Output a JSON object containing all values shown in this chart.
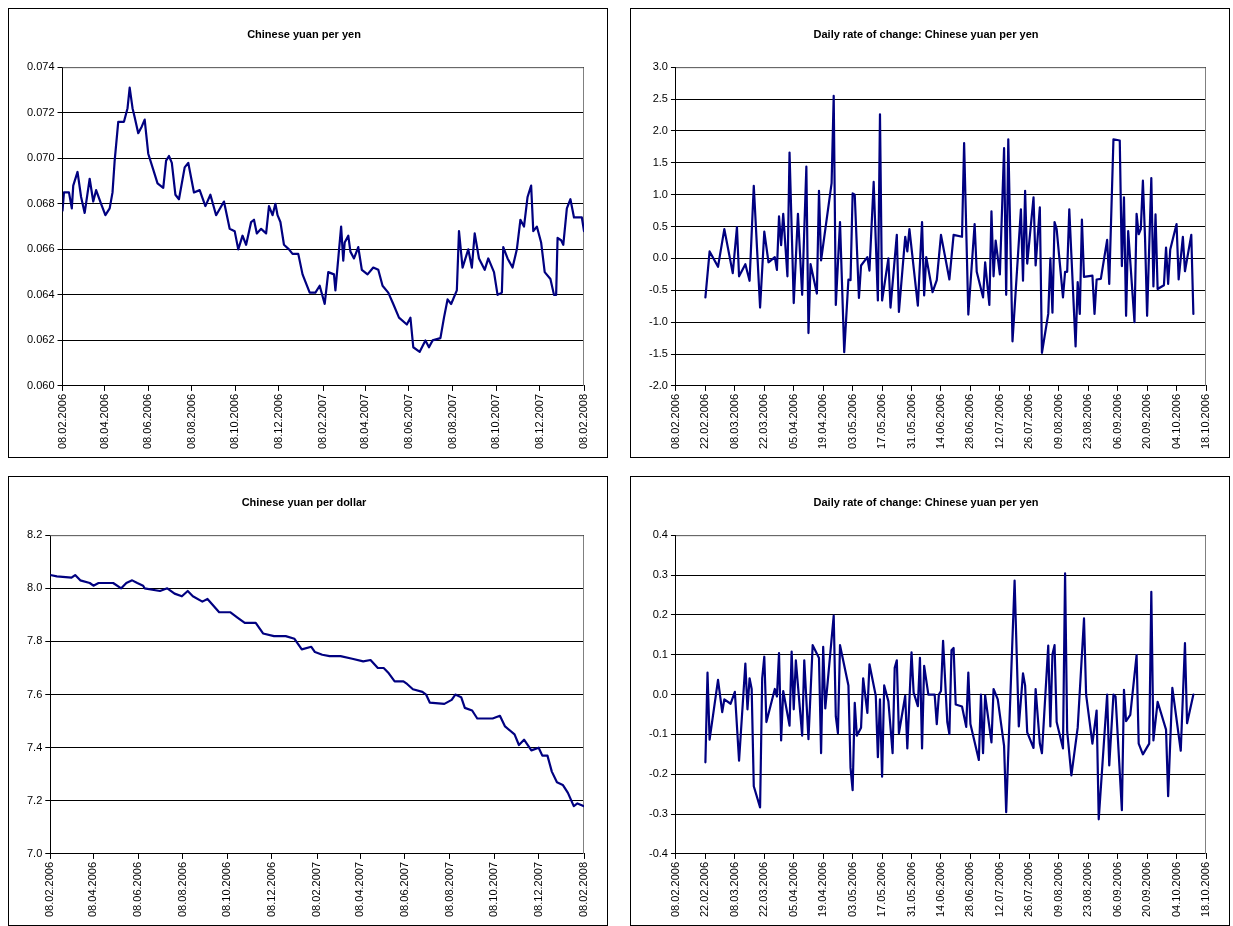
{
  "chart_data": [
    {
      "type": "line",
      "title": "Chinese yuan per yen",
      "color": "#000080",
      "marker": "none",
      "grid": "y",
      "x": [
        "2006-02-08",
        "2006-02-10",
        "2006-02-17",
        "2006-02-21",
        "2006-02-23",
        "2006-03-01",
        "2006-03-06",
        "2006-03-11",
        "2006-03-18",
        "2006-03-23",
        "2006-03-27",
        "2006-04-03",
        "2006-04-09",
        "2006-04-15",
        "2006-04-19",
        "2006-04-22",
        "2006-04-27",
        "2006-05-05",
        "2006-05-10",
        "2006-05-13",
        "2006-05-17",
        "2006-05-20",
        "2006-05-25",
        "2006-05-30",
        "2006-06-03",
        "2006-06-08",
        "2006-06-15",
        "2006-06-21",
        "2006-06-29",
        "2006-07-03",
        "2006-07-07",
        "2006-07-11",
        "2006-07-16",
        "2006-07-21",
        "2006-07-29",
        "2006-08-03",
        "2006-08-11",
        "2006-08-19",
        "2006-08-27",
        "2006-09-03",
        "2006-09-11",
        "2006-09-22",
        "2006-09-30",
        "2006-10-07",
        "2006-10-12",
        "2006-10-18",
        "2006-10-23",
        "2006-10-30",
        "2006-11-03",
        "2006-11-07",
        "2006-11-13",
        "2006-11-20",
        "2006-11-24",
        "2006-11-29",
        "2006-12-03",
        "2006-12-06",
        "2006-12-10",
        "2006-12-15",
        "2006-12-22",
        "2006-12-27",
        "2007-01-04",
        "2007-01-10",
        "2007-01-20",
        "2007-01-28",
        "2007-02-03",
        "2007-02-10",
        "2007-02-15",
        "2007-02-23",
        "2007-02-25",
        "2007-03-05",
        "2007-03-08",
        "2007-03-10",
        "2007-03-15",
        "2007-03-18",
        "2007-03-23",
        "2007-03-29",
        "2007-04-03",
        "2007-04-11",
        "2007-04-19",
        "2007-04-26",
        "2007-05-02",
        "2007-05-10",
        "2007-05-17",
        "2007-05-25",
        "2007-06-05",
        "2007-06-10",
        "2007-06-14",
        "2007-06-23",
        "2007-07-01",
        "2007-07-06",
        "2007-07-11",
        "2007-07-22",
        "2007-07-27",
        "2007-08-01",
        "2007-08-06",
        "2007-08-14",
        "2007-08-17",
        "2007-08-22",
        "2007-08-30",
        "2007-09-04",
        "2007-09-08",
        "2007-09-14",
        "2007-09-22",
        "2007-09-27",
        "2007-10-05",
        "2007-10-10",
        "2007-10-16",
        "2007-10-18",
        "2007-10-24",
        "2007-10-31",
        "2007-11-06",
        "2007-11-11",
        "2007-11-16",
        "2007-11-21",
        "2007-11-26",
        "2007-11-29",
        "2007-12-04",
        "2007-12-10",
        "2007-12-15",
        "2007-12-23",
        "2007-12-28",
        "2007-12-31",
        "2008-01-02",
        "2008-01-07",
        "2008-01-10",
        "2008-01-15",
        "2008-01-20",
        "2008-01-25",
        "2008-01-31",
        "2008-02-05",
        "2008-02-08"
      ],
      "values": [
        0.0677,
        0.0685,
        0.0685,
        0.0678,
        0.0688,
        0.0694,
        0.0683,
        0.0676,
        0.0691,
        0.0681,
        0.0686,
        0.068,
        0.0675,
        0.0678,
        0.0685,
        0.0699,
        0.0716,
        0.0716,
        0.0722,
        0.0731,
        0.0722,
        0.0718,
        0.0711,
        0.0714,
        0.0717,
        0.0702,
        0.0695,
        0.0689,
        0.0687,
        0.0699,
        0.0701,
        0.0698,
        0.0684,
        0.0682,
        0.0696,
        0.0698,
        0.0685,
        0.0686,
        0.0679,
        0.0684,
        0.0675,
        0.0681,
        0.0669,
        0.0668,
        0.066,
        0.0666,
        0.0662,
        0.0672,
        0.0673,
        0.0667,
        0.0669,
        0.0667,
        0.0679,
        0.0675,
        0.068,
        0.0675,
        0.0672,
        0.0662,
        0.066,
        0.0658,
        0.0658,
        0.0649,
        0.0641,
        0.0641,
        0.0644,
        0.0636,
        0.065,
        0.0649,
        0.0642,
        0.067,
        0.0655,
        0.0663,
        0.0666,
        0.0659,
        0.0656,
        0.0661,
        0.0651,
        0.0649,
        0.0652,
        0.0651,
        0.0644,
        0.0641,
        0.0636,
        0.063,
        0.0627,
        0.063,
        0.0617,
        0.0615,
        0.062,
        0.0617,
        0.062,
        0.0621,
        0.063,
        0.0638,
        0.0636,
        0.0642,
        0.0668,
        0.0652,
        0.066,
        0.0652,
        0.0667,
        0.0656,
        0.0651,
        0.0656,
        0.065,
        0.064,
        0.0641,
        0.0661,
        0.0656,
        0.0652,
        0.066,
        0.0673,
        0.067,
        0.0683,
        0.0688,
        0.0668,
        0.067,
        0.0663,
        0.065,
        0.0647,
        0.064,
        0.064,
        0.0665,
        0.0664,
        0.0662,
        0.0678,
        0.0682,
        0.0674,
        0.0674,
        0.0674,
        0.0668
      ],
      "xlim": [
        "2006-02-08",
        "2008-02-08"
      ],
      "xticks": [
        {
          "value": "2006-02-08",
          "label": "08.02.2006"
        },
        {
          "value": "2006-04-08",
          "label": "08.04.2006"
        },
        {
          "value": "2006-06-08",
          "label": "08.06.2006"
        },
        {
          "value": "2006-08-08",
          "label": "08.08.2006"
        },
        {
          "value": "2006-10-08",
          "label": "08.10.2006"
        },
        {
          "value": "2006-12-08",
          "label": "08.12.2006"
        },
        {
          "value": "2007-02-08",
          "label": "08.02.2007"
        },
        {
          "value": "2007-04-08",
          "label": "08.04.2007"
        },
        {
          "value": "2007-06-08",
          "label": "08.06.2007"
        },
        {
          "value": "2007-08-08",
          "label": "08.08.2007"
        },
        {
          "value": "2007-10-08",
          "label": "08.10.2007"
        },
        {
          "value": "2007-12-08",
          "label": "08.12.2007"
        },
        {
          "value": "2008-02-08",
          "label": "08.02.2008"
        }
      ],
      "ylim": [
        0.06,
        0.074
      ],
      "yticks": [
        {
          "value": 0.06,
          "label": "0.060"
        },
        {
          "value": 0.062,
          "label": "0.062"
        },
        {
          "value": 0.064,
          "label": "0.064"
        },
        {
          "value": 0.066,
          "label": "0.066"
        },
        {
          "value": 0.068,
          "label": "0.068"
        },
        {
          "value": 0.07,
          "label": "0.070"
        },
        {
          "value": 0.072,
          "label": "0.072"
        },
        {
          "value": 0.074,
          "label": "0.074"
        }
      ]
    },
    {
      "type": "line",
      "title": "Daily rate of change: Chinese yuan per yen",
      "color": "#000080",
      "marker": "none",
      "grid": "y",
      "x": [
        "2006-02-22",
        "2006-02-24",
        "2006-02-28",
        "2006-03-03",
        "2006-03-07",
        "2006-03-09",
        "2006-03-10",
        "2006-03-13",
        "2006-03-15",
        "2006-03-17",
        "2006-03-20",
        "2006-03-22",
        "2006-03-24",
        "2006-03-27",
        "2006-03-28",
        "2006-03-29",
        "2006-03-30",
        "2006-03-31",
        "2006-04-02",
        "2006-04-03",
        "2006-04-05",
        "2006-04-07",
        "2006-04-09",
        "2006-04-11",
        "2006-04-12",
        "2006-04-13",
        "2006-04-16",
        "2006-04-17",
        "2006-04-18",
        "2006-04-23",
        "2006-04-24",
        "2006-04-25",
        "2006-04-27",
        "2006-04-29",
        "2006-05-01",
        "2006-05-02",
        "2006-05-03",
        "2006-05-04",
        "2006-05-06",
        "2006-05-07",
        "2006-05-10",
        "2006-05-11",
        "2006-05-13",
        "2006-05-15",
        "2006-05-16",
        "2006-05-17",
        "2006-05-20",
        "2006-05-21",
        "2006-05-24",
        "2006-05-25",
        "2006-05-28",
        "2006-05-29",
        "2006-05-30",
        "2006-06-03",
        "2006-06-05",
        "2006-06-06",
        "2006-06-07",
        "2006-06-10",
        "2006-06-12",
        "2006-06-14",
        "2006-06-18",
        "2006-06-20",
        "2006-06-24",
        "2006-06-25",
        "2006-06-27",
        "2006-06-30",
        "2006-07-01",
        "2006-07-04",
        "2006-07-05",
        "2006-07-07",
        "2006-07-08",
        "2006-07-09",
        "2006-07-10",
        "2006-07-12",
        "2006-07-14",
        "2006-07-15",
        "2006-07-16",
        "2006-07-18",
        "2006-07-22",
        "2006-07-23",
        "2006-07-24",
        "2006-07-25",
        "2006-07-28",
        "2006-07-29",
        "2006-07-31",
        "2006-08-01",
        "2006-08-04",
        "2006-08-05",
        "2006-08-06",
        "2006-08-07",
        "2006-08-08",
        "2006-08-11",
        "2006-08-12",
        "2006-08-13",
        "2006-08-14",
        "2006-08-17",
        "2006-08-18",
        "2006-08-19",
        "2006-08-20",
        "2006-08-21",
        "2006-08-25",
        "2006-08-26",
        "2006-08-27",
        "2006-08-29",
        "2006-09-01",
        "2006-09-02",
        "2006-09-04",
        "2006-09-07",
        "2006-09-08",
        "2006-09-09",
        "2006-09-10",
        "2006-09-11",
        "2006-09-14",
        "2006-09-15",
        "2006-09-16",
        "2006-09-17",
        "2006-09-18",
        "2006-09-19",
        "2006-09-20",
        "2006-09-22",
        "2006-09-23",
        "2006-09-24",
        "2006-09-25",
        "2006-09-28",
        "2006-09-29",
        "2006-09-30",
        "2006-10-01",
        "2006-10-04",
        "2006-10-05",
        "2006-10-07",
        "2006-10-08",
        "2006-10-11",
        "2006-10-12"
      ],
      "values": [
        -0.61,
        0.11,
        -0.13,
        0.46,
        -0.23,
        0.49,
        -0.28,
        -0.09,
        -0.35,
        1.14,
        -0.77,
        0.42,
        -0.06,
        0.02,
        -0.18,
        0.66,
        0.21,
        0.7,
        -0.28,
        1.66,
        -0.7,
        0.7,
        -0.57,
        1.44,
        -1.17,
        -0.09,
        -0.55,
        1.06,
        -0.03,
        1.18,
        2.55,
        -0.73,
        0.57,
        -1.47,
        -0.33,
        -0.34,
        1.02,
        1.0,
        -0.62,
        -0.11,
        0.02,
        -0.19,
        1.2,
        -0.66,
        2.26,
        -0.66,
        0.0,
        -0.77,
        0.37,
        -0.84,
        0.34,
        0.11,
        0.46,
        -0.74,
        0.57,
        -0.58,
        0.02,
        -0.53,
        -0.34,
        0.37,
        -0.33,
        0.37,
        0.34,
        1.81,
        -0.88,
        0.54,
        -0.21,
        -0.61,
        -0.06,
        -0.73,
        0.74,
        -0.28,
        0.28,
        -0.25,
        1.73,
        -0.57,
        1.87,
        -1.3,
        0.77,
        -0.35,
        1.06,
        -0.08,
        0.96,
        -0.11,
        0.8,
        -1.48,
        -0.87,
        0.0,
        -0.85,
        0.57,
        0.46,
        -0.61,
        -0.21,
        -0.21,
        0.77,
        -1.38,
        -0.37,
        -0.87,
        0.61,
        -0.29,
        -0.27,
        -0.87,
        -0.33,
        -0.32,
        0.29,
        -0.4,
        1.87,
        1.85,
        -0.12,
        0.96,
        -0.9,
        0.43,
        -1.0,
        0.7,
        0.38,
        0.46,
        1.22,
        0.34,
        -0.9,
        1.26,
        -0.44,
        0.69,
        -0.48,
        -0.42,
        0.17,
        -0.4,
        0.14,
        0.54,
        -0.33,
        0.34,
        -0.2,
        0.37,
        -0.87
      ],
      "xlim": [
        "2006-02-08",
        "2006-10-18"
      ],
      "xticks": [
        {
          "value": "2006-02-08",
          "label": "08.02.2006"
        },
        {
          "value": "2006-02-22",
          "label": "22.02.2006"
        },
        {
          "value": "2006-03-08",
          "label": "08.03.2006"
        },
        {
          "value": "2006-03-22",
          "label": "22.03.2006"
        },
        {
          "value": "2006-04-05",
          "label": "05.04.2006"
        },
        {
          "value": "2006-04-19",
          "label": "19.04.2006"
        },
        {
          "value": "2006-05-03",
          "label": "03.05.2006"
        },
        {
          "value": "2006-05-17",
          "label": "17.05.2006"
        },
        {
          "value": "2006-05-31",
          "label": "31.05.2006"
        },
        {
          "value": "2006-06-14",
          "label": "14.06.2006"
        },
        {
          "value": "2006-06-28",
          "label": "28.06.2006"
        },
        {
          "value": "2006-07-12",
          "label": "12.07.2006"
        },
        {
          "value": "2006-07-26",
          "label": "26.07.2006"
        },
        {
          "value": "2006-08-09",
          "label": "09.08.2006"
        },
        {
          "value": "2006-08-23",
          "label": "23.08.2006"
        },
        {
          "value": "2006-09-06",
          "label": "06.09.2006"
        },
        {
          "value": "2006-09-20",
          "label": "20.09.2006"
        },
        {
          "value": "2006-10-04",
          "label": "04.10.2006"
        },
        {
          "value": "2006-10-18",
          "label": "18.10.2006"
        }
      ],
      "ylim": [
        -2.0,
        3.0
      ],
      "yticks": [
        {
          "value": -2,
          "label": "-2.0"
        },
        {
          "value": -1.5,
          "label": "-1.5"
        },
        {
          "value": -1,
          "label": "-1.0"
        },
        {
          "value": -0.5,
          "label": "-0.5"
        },
        {
          "value": 0,
          "label": "0.0"
        },
        {
          "value": 0.5,
          "label": "0.5"
        },
        {
          "value": 1,
          "label": "1.0"
        },
        {
          "value": 1.5,
          "label": "1.5"
        },
        {
          "value": 2,
          "label": "2.0"
        },
        {
          "value": 2.5,
          "label": "2.5"
        },
        {
          "value": 3,
          "label": "3.0"
        }
      ]
    },
    {
      "type": "line",
      "title": "Chinese yuan per dollar",
      "color": "#000080",
      "marker": "none",
      "grid": "y",
      "x": [
        "2006-02-08",
        "2006-02-17",
        "2006-03-09",
        "2006-03-14",
        "2006-03-21",
        "2006-04-03",
        "2006-04-08",
        "2006-04-15",
        "2006-05-05",
        "2006-05-16",
        "2006-05-23",
        "2006-05-31",
        "2006-06-07",
        "2006-06-15",
        "2006-06-17",
        "2006-07-08",
        "2006-07-18",
        "2006-07-28",
        "2006-08-07",
        "2006-08-15",
        "2006-08-22",
        "2006-09-04",
        "2006-09-11",
        "2006-09-27",
        "2006-10-12",
        "2006-10-22",
        "2006-11-01",
        "2006-11-16",
        "2006-11-26",
        "2006-12-11",
        "2006-12-27",
        "2007-01-08",
        "2007-01-18",
        "2007-01-31",
        "2007-02-05",
        "2007-02-15",
        "2007-02-25",
        "2007-03-12",
        "2007-03-28",
        "2007-04-12",
        "2007-04-22",
        "2007-05-02",
        "2007-05-10",
        "2007-05-17",
        "2007-05-25",
        "2007-06-06",
        "2007-06-11",
        "2007-06-19",
        "2007-07-02",
        "2007-07-07",
        "2007-07-12",
        "2007-08-01",
        "2007-08-11",
        "2007-08-16",
        "2007-08-24",
        "2007-08-29",
        "2007-09-08",
        "2007-09-15",
        "2007-09-25",
        "2007-10-06",
        "2007-10-16",
        "2007-10-23",
        "2007-11-05",
        "2007-11-11",
        "2007-11-18",
        "2007-11-28",
        "2007-12-08",
        "2007-12-13",
        "2007-12-20",
        "2007-12-26",
        "2008-01-02",
        "2008-01-10",
        "2008-01-17",
        "2008-01-25",
        "2008-01-30",
        "2008-02-08"
      ],
      "values": [
        8.05,
        8.045,
        8.04,
        8.05,
        8.03,
        8.02,
        8.01,
        8.02,
        8.02,
        8.0,
        8.02,
        8.03,
        8.02,
        8.01,
        8.0,
        7.99,
        8.0,
        7.98,
        7.97,
        7.99,
        7.97,
        7.95,
        7.96,
        7.91,
        7.91,
        7.89,
        7.87,
        7.87,
        7.83,
        7.82,
        7.82,
        7.81,
        7.77,
        7.78,
        7.76,
        7.75,
        7.745,
        7.745,
        7.735,
        7.725,
        7.73,
        7.7,
        7.7,
        7.68,
        7.65,
        7.65,
        7.64,
        7.62,
        7.61,
        7.6,
        7.57,
        7.565,
        7.58,
        7.6,
        7.59,
        7.55,
        7.54,
        7.51,
        7.51,
        7.51,
        7.52,
        7.48,
        7.45,
        7.41,
        7.43,
        7.39,
        7.4,
        7.37,
        7.37,
        7.31,
        7.27,
        7.26,
        7.23,
        7.18,
        7.19,
        7.18
      ],
      "xlim": [
        "2006-02-08",
        "2008-02-08"
      ],
      "xticks": [
        {
          "value": "2006-02-08",
          "label": "08.02.2006"
        },
        {
          "value": "2006-04-08",
          "label": "08.04.2006"
        },
        {
          "value": "2006-06-08",
          "label": "08.06.2006"
        },
        {
          "value": "2006-08-08",
          "label": "08.08.2006"
        },
        {
          "value": "2006-10-08",
          "label": "08.10.2006"
        },
        {
          "value": "2006-12-08",
          "label": "08.12.2006"
        },
        {
          "value": "2007-02-08",
          "label": "08.02.2007"
        },
        {
          "value": "2007-04-08",
          "label": "08.04.2007"
        },
        {
          "value": "2007-06-08",
          "label": "08.06.2007"
        },
        {
          "value": "2007-08-08",
          "label": "08.08.2007"
        },
        {
          "value": "2007-10-08",
          "label": "08.10.2007"
        },
        {
          "value": "2007-12-08",
          "label": "08.12.2007"
        },
        {
          "value": "2008-02-08",
          "label": "08.02.2008"
        }
      ],
      "ylim": [
        7.0,
        8.2
      ],
      "yticks": [
        {
          "value": 7,
          "label": "7.0"
        },
        {
          "value": 7.2,
          "label": "7.2"
        },
        {
          "value": 7.4,
          "label": "7.4"
        },
        {
          "value": 7.6,
          "label": "7.6"
        },
        {
          "value": 7.8,
          "label": "7.8"
        },
        {
          "value": 8,
          "label": "8.0"
        },
        {
          "value": 8.2,
          "label": "8.2"
        }
      ]
    },
    {
      "type": "line",
      "title": "Daily rate of change: Chinese yuan per yen",
      "color": "#000080",
      "marker": "none",
      "grid": "y",
      "x": [
        "2006-02-22",
        "2006-02-23",
        "2006-02-24",
        "2006-02-28",
        "2006-03-02",
        "2006-03-03",
        "2006-03-06",
        "2006-03-08",
        "2006-03-10",
        "2006-03-13",
        "2006-03-14",
        "2006-03-15",
        "2006-03-16",
        "2006-03-17",
        "2006-03-20",
        "2006-03-21",
        "2006-03-22",
        "2006-03-23",
        "2006-03-27",
        "2006-03-28",
        "2006-03-29",
        "2006-03-30",
        "2006-03-31",
        "2006-04-03",
        "2006-04-04",
        "2006-04-05",
        "2006-04-06",
        "2006-04-09",
        "2006-04-10",
        "2006-04-12",
        "2006-04-14",
        "2006-04-17",
        "2006-04-18",
        "2006-04-19",
        "2006-04-20",
        "2006-04-24",
        "2006-04-25",
        "2006-04-26",
        "2006-04-27",
        "2006-05-01",
        "2006-05-02",
        "2006-05-03",
        "2006-05-04",
        "2006-05-05",
        "2006-05-07",
        "2006-05-08",
        "2006-05-10",
        "2006-05-11",
        "2006-05-14",
        "2006-05-15",
        "2006-05-16",
        "2006-05-17",
        "2006-05-18",
        "2006-05-20",
        "2006-05-22",
        "2006-05-23",
        "2006-05-24",
        "2006-05-25",
        "2006-05-28",
        "2006-05-29",
        "2006-05-31",
        "2006-06-01",
        "2006-06-03",
        "2006-06-04",
        "2006-06-05",
        "2006-06-06",
        "2006-06-08",
        "2006-06-11",
        "2006-06-12",
        "2006-06-13",
        "2006-06-14",
        "2006-06-15",
        "2006-06-17",
        "2006-06-18",
        "2006-06-19",
        "2006-06-20",
        "2006-06-21",
        "2006-06-24",
        "2006-06-26",
        "2006-06-27",
        "2006-06-28",
        "2006-07-02",
        "2006-07-03",
        "2006-07-04",
        "2006-07-05",
        "2006-07-08",
        "2006-07-09",
        "2006-07-11",
        "2006-07-14",
        "2006-07-15",
        "2006-07-16",
        "2006-07-19",
        "2006-07-21",
        "2006-07-23",
        "2006-07-24",
        "2006-07-25",
        "2006-07-28",
        "2006-07-29",
        "2006-07-31",
        "2006-08-01",
        "2006-08-04",
        "2006-08-05",
        "2006-08-06",
        "2006-08-07",
        "2006-08-08",
        "2006-08-11",
        "2006-08-12",
        "2006-08-13",
        "2006-08-15",
        "2006-08-18",
        "2006-08-21",
        "2006-08-22",
        "2006-08-25",
        "2006-08-27",
        "2006-08-28",
        "2006-09-01",
        "2006-09-02",
        "2006-09-04",
        "2006-09-05",
        "2006-09-08",
        "2006-09-09",
        "2006-09-10",
        "2006-09-12",
        "2006-09-15",
        "2006-09-16",
        "2006-09-18",
        "2006-09-21",
        "2006-09-22",
        "2006-09-23",
        "2006-09-25",
        "2006-09-29",
        "2006-09-30",
        "2006-10-02",
        "2006-10-06",
        "2006-10-08",
        "2006-10-09",
        "2006-10-12"
      ],
      "values": [
        -0.17,
        0.055,
        -0.113,
        0.037,
        -0.044,
        -0.012,
        -0.023,
        0.007,
        -0.166,
        0.078,
        -0.037,
        0.041,
        0.014,
        -0.23,
        -0.283,
        0.041,
        0.095,
        -0.069,
        0.014,
        -0.005,
        0.104,
        -0.115,
        0.009,
        -0.078,
        0.108,
        -0.037,
        0.086,
        -0.103,
        0.086,
        -0.112,
        0.124,
        0.092,
        -0.147,
        0.12,
        -0.035,
        0.198,
        -0.055,
        -0.097,
        0.124,
        0.023,
        -0.184,
        -0.24,
        -0.021,
        -0.103,
        -0.083,
        0.041,
        -0.046,
        0.076,
        -0.003,
        -0.157,
        -0.012,
        -0.206,
        0.023,
        -0.017,
        -0.147,
        0.067,
        0.086,
        -0.097,
        -0.003,
        -0.135,
        0.106,
        0.005,
        -0.029,
        0.092,
        -0.135,
        0.072,
        0.0,
        0.0,
        -0.074,
        0.0,
        0.009,
        0.135,
        -0.069,
        -0.099,
        0.111,
        0.117,
        -0.025,
        -0.03,
        -0.081,
        0.055,
        -0.074,
        -0.164,
        0.0,
        -0.147,
        -0.002,
        -0.12,
        0.014,
        -0.012,
        -0.129,
        -0.295,
        -0.147,
        0.286,
        -0.08,
        0.053,
        0.023,
        -0.095,
        -0.134,
        0.014,
        -0.123,
        -0.147,
        0.123,
        -0.08,
        0.101,
        0.124,
        -0.069,
        -0.135,
        0.304,
        -0.092,
        -0.203,
        -0.083,
        0.191,
        0.0,
        -0.123,
        -0.04,
        -0.313,
        0.0,
        -0.178,
        0.0,
        -0.005,
        -0.29,
        0.012,
        -0.067,
        -0.051,
        0.099,
        -0.123,
        -0.15,
        -0.123,
        0.258,
        -0.115,
        -0.018,
        -0.088,
        -0.255,
        0.017,
        -0.141,
        0.129,
        -0.072,
        0.0
      ],
      "xlim": [
        "2006-02-08",
        "2006-10-18"
      ],
      "xticks": [
        {
          "value": "2006-02-08",
          "label": "08.02.2006"
        },
        {
          "value": "2006-02-22",
          "label": "22.02.2006"
        },
        {
          "value": "2006-03-08",
          "label": "08.03.2006"
        },
        {
          "value": "2006-03-22",
          "label": "22.03.2006"
        },
        {
          "value": "2006-04-05",
          "label": "05.04.2006"
        },
        {
          "value": "2006-04-19",
          "label": "19.04.2006"
        },
        {
          "value": "2006-05-03",
          "label": "03.05.2006"
        },
        {
          "value": "2006-05-17",
          "label": "17.05.2006"
        },
        {
          "value": "2006-05-31",
          "label": "31.05.2006"
        },
        {
          "value": "2006-06-14",
          "label": "14.06.2006"
        },
        {
          "value": "2006-06-28",
          "label": "28.06.2006"
        },
        {
          "value": "2006-07-12",
          "label": "12.07.2006"
        },
        {
          "value": "2006-07-26",
          "label": "26.07.2006"
        },
        {
          "value": "2006-08-09",
          "label": "09.08.2006"
        },
        {
          "value": "2006-08-23",
          "label": "23.08.2006"
        },
        {
          "value": "2006-09-06",
          "label": "06.09.2006"
        },
        {
          "value": "2006-09-20",
          "label": "20.09.2006"
        },
        {
          "value": "2006-10-04",
          "label": "04.10.2006"
        },
        {
          "value": "2006-10-18",
          "label": "18.10.2006"
        }
      ],
      "ylim": [
        -0.4,
        0.4
      ],
      "yticks": [
        {
          "value": -0.4,
          "label": "-0.4"
        },
        {
          "value": -0.3,
          "label": "-0.3"
        },
        {
          "value": -0.2,
          "label": "-0.2"
        },
        {
          "value": -0.1,
          "label": "-0.1"
        },
        {
          "value": 0,
          "label": "0.0"
        },
        {
          "value": 0.1,
          "label": "0.1"
        },
        {
          "value": 0.2,
          "label": "0.2"
        },
        {
          "value": 0.3,
          "label": "0.3"
        },
        {
          "value": 0.4,
          "label": "0.4"
        }
      ]
    }
  ]
}
